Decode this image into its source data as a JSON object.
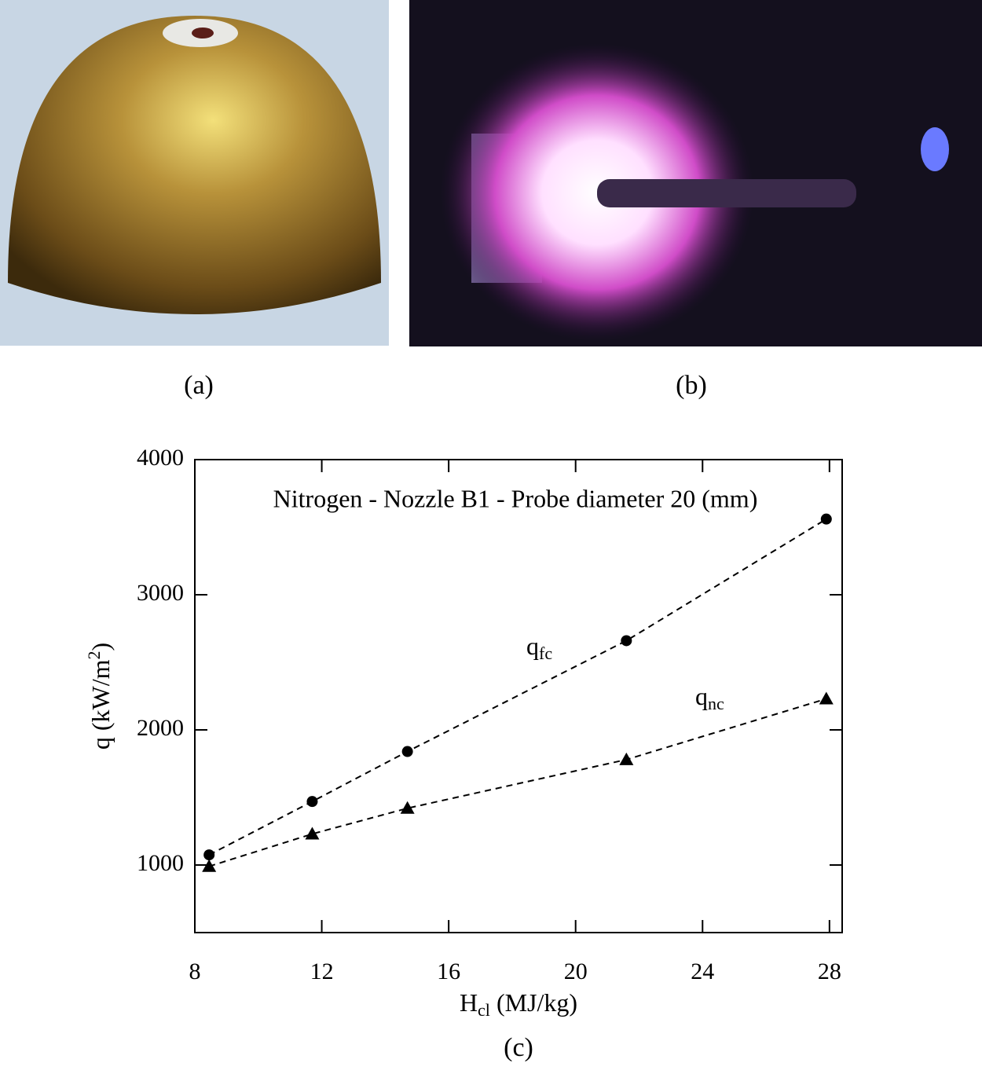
{
  "panel_labels": [
    "(a)",
    "(b)",
    "(c)"
  ],
  "chart_data": {
    "type": "line",
    "annotation": "Nitrogen - Nozzle B1 - Probe diameter 20 (mm)",
    "xlabel": {
      "text": "H",
      "sub": "cl",
      "tail": " (MJ/kg)"
    },
    "ylabel": {
      "text": "q (kW/m",
      "sup": "2",
      "tail": ")"
    },
    "xlim": [
      8,
      28.4
    ],
    "xticks": [
      8,
      12,
      16,
      20,
      24,
      28
    ],
    "ylim": [
      500,
      4000
    ],
    "yticks": [
      1000,
      2000,
      3000,
      4000
    ],
    "series": [
      {
        "name": "q",
        "name_sub": "fc",
        "marker": "circle",
        "color": "#000000",
        "x": [
          8.45,
          11.7,
          14.7,
          21.6,
          27.9
        ],
        "values": [
          1075,
          1470,
          1840,
          2660,
          3560
        ]
      },
      {
        "name": "q",
        "name_sub": "nc",
        "marker": "triangle",
        "color": "#000000",
        "x": [
          8.45,
          11.7,
          14.7,
          21.6,
          27.9
        ],
        "values": [
          990,
          1230,
          1420,
          1780,
          2230
        ]
      }
    ]
  }
}
